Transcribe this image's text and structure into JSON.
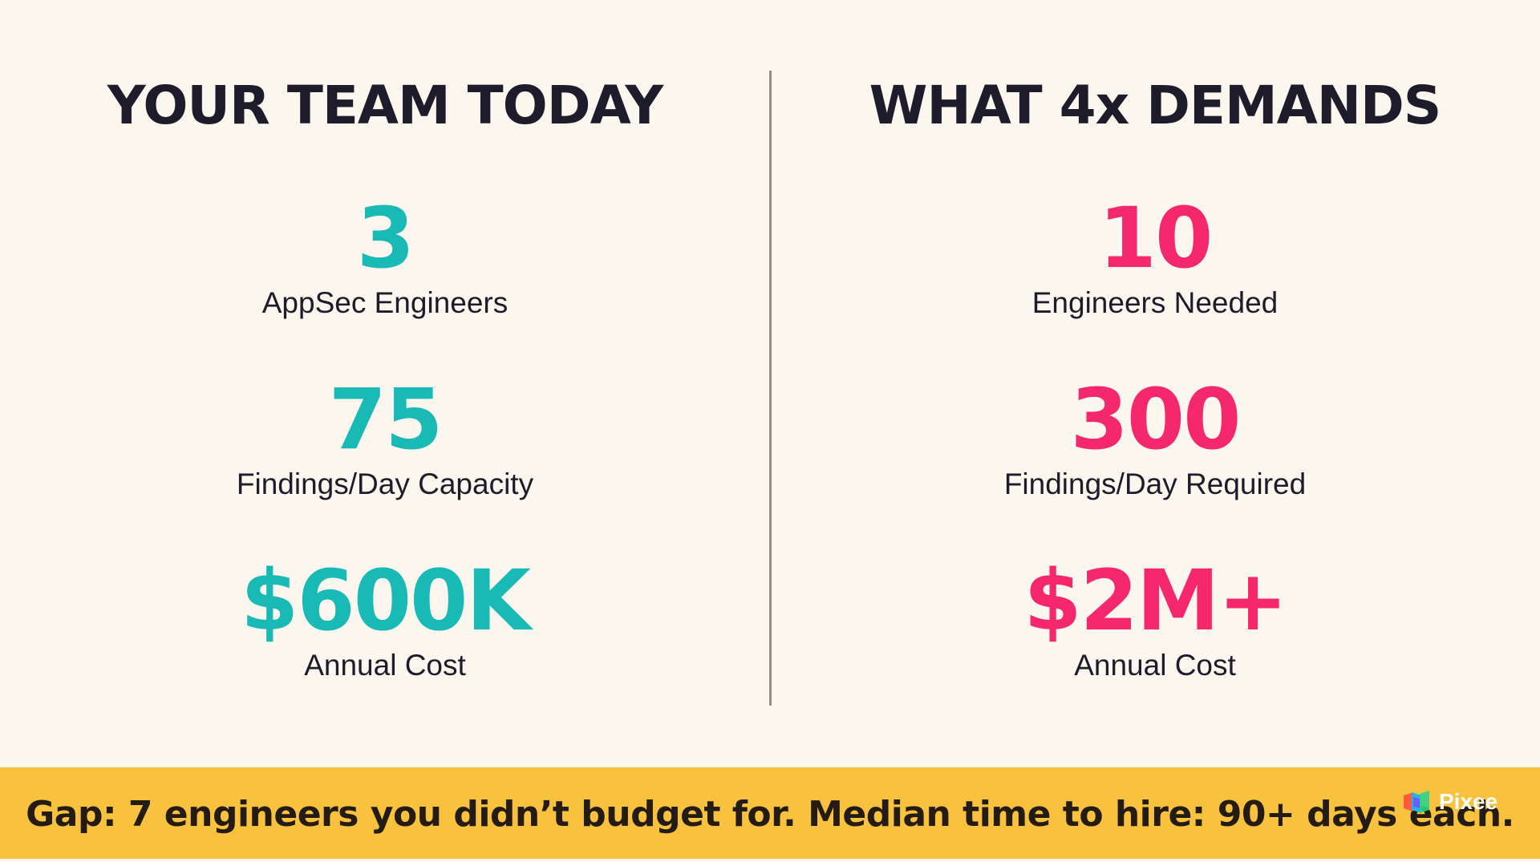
{
  "left": {
    "title": "YOUR TEAM TODAY",
    "stats": [
      {
        "value": "3",
        "label": "AppSec Engineers"
      },
      {
        "value": "75",
        "label": "Findings/Day Capacity"
      },
      {
        "value": "$600K",
        "label": "Annual Cost"
      }
    ]
  },
  "right": {
    "title": "WHAT 4x DEMANDS",
    "stats": [
      {
        "value": "10",
        "label": "Engineers Needed"
      },
      {
        "value": "300",
        "label": "Findings/Day Required"
      },
      {
        "value": "$2M+",
        "label": "Annual Cost"
      }
    ]
  },
  "banner": {
    "text": "Gap: 7 engineers you didn’t budget for. Median time to hire: 90+ days each."
  },
  "brand": {
    "name": "Pixee",
    "icon": "pixee-logo-icon"
  },
  "colors": {
    "background": "#fbf7ee",
    "current": "#19b9b5",
    "demand": "#f5286e",
    "banner": "#f8c23f",
    "text": "#1e1b2b"
  }
}
